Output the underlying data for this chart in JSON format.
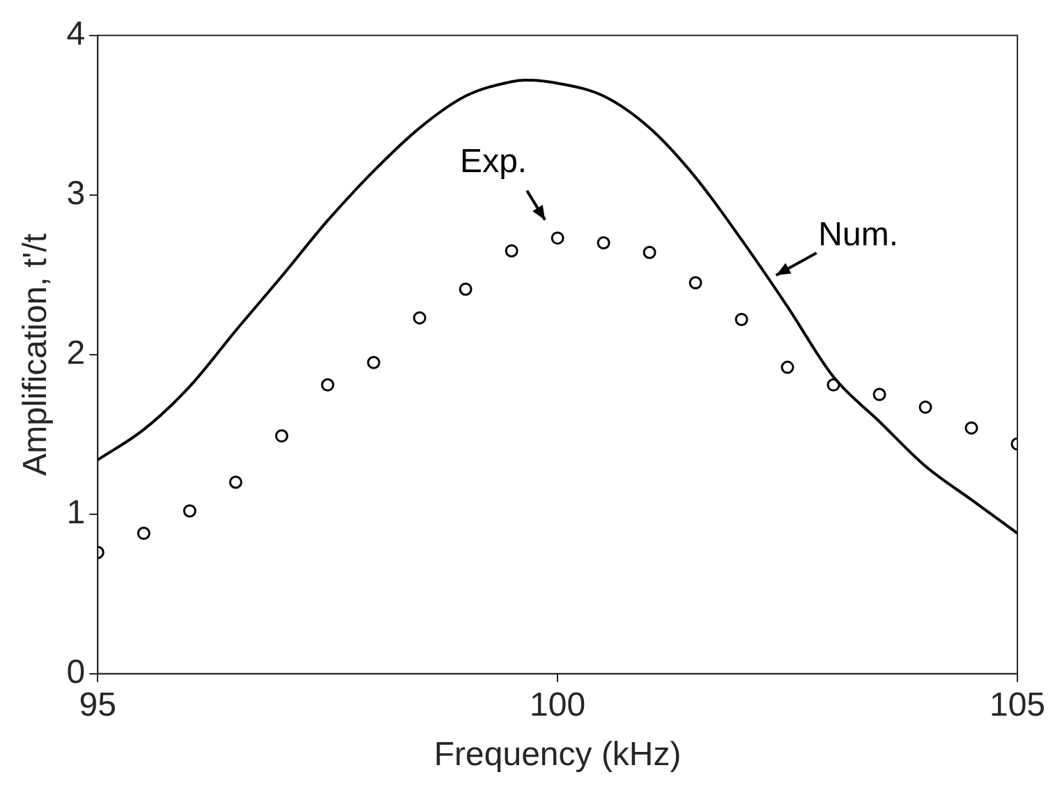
{
  "chart_data": {
    "type": "line",
    "xlabel": "Frequency (kHz)",
    "ylabel": "Amplification, t'/t",
    "xlim": [
      95,
      105
    ],
    "xticks": [
      95,
      100,
      105
    ],
    "ylim": [
      0,
      4
    ],
    "yticks": [
      0,
      1,
      2,
      3,
      4
    ],
    "grid": false,
    "legend": false,
    "series": [
      {
        "type": "line",
        "color": "#000000",
        "marker": "none",
        "line_style": "solid",
        "x": [
          95,
          95.5,
          96,
          96.5,
          97,
          97.5,
          98,
          98.5,
          99,
          99.5,
          99.65,
          100,
          100.5,
          101,
          101.5,
          102,
          102.5,
          103,
          103.5,
          104,
          104.5,
          105
        ],
        "values": [
          1.34,
          1.53,
          1.8,
          2.15,
          2.49,
          2.84,
          3.15,
          3.42,
          3.62,
          3.71,
          3.72,
          3.7,
          3.62,
          3.42,
          3.11,
          2.72,
          2.3,
          1.86,
          1.58,
          1.3,
          1.09,
          0.88
        ]
      },
      {
        "type": "scatter",
        "color": "#000000",
        "marker": "circle",
        "x": [
          95,
          95.5,
          96,
          96.5,
          97,
          97.5,
          98,
          98.5,
          99,
          99.5,
          100,
          100.5,
          101,
          101.5,
          102,
          102.5,
          103,
          103.5,
          104,
          104.5,
          105
        ],
        "values": [
          0.76,
          0.88,
          1.02,
          1.2,
          1.49,
          1.81,
          1.95,
          2.23,
          2.41,
          2.65,
          2.73,
          2.7,
          2.64,
          2.45,
          2.22,
          1.92,
          1.81,
          1.75,
          1.67,
          1.54,
          1.44
        ]
      }
    ],
    "annotations": [
      {
        "text": "Exp.",
        "x": 100,
        "y": 2.73
      },
      {
        "text": "Num.",
        "x": 102.3,
        "y": 2.48
      }
    ]
  }
}
